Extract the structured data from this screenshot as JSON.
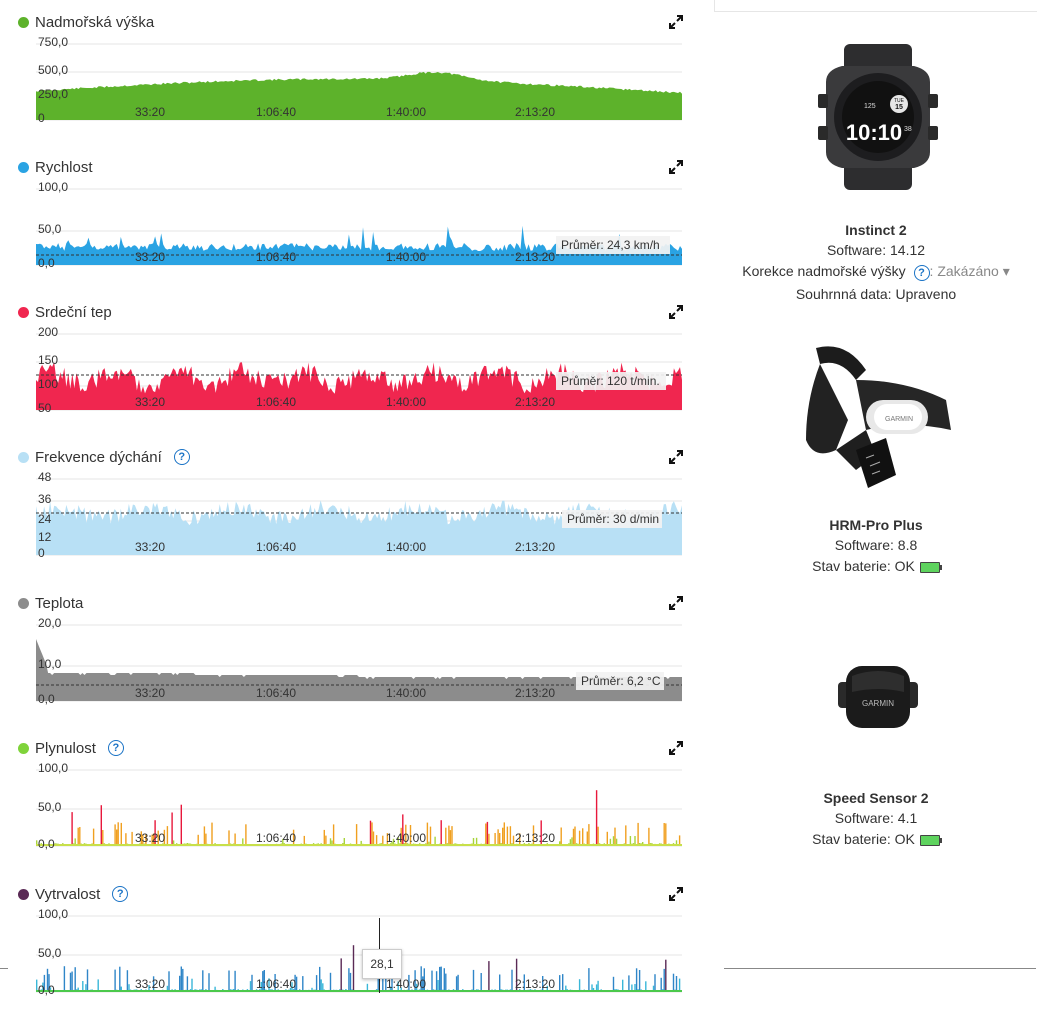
{
  "time_ticks": [
    "33:20",
    "1:06:40",
    "1:40:00",
    "2:13:20"
  ],
  "panels": [
    {
      "id": "elevation",
      "title": "Nadmořská výška",
      "color": "#5db22b",
      "help": false,
      "yticks": [
        "750,0",
        "500,0",
        "250,0",
        "0"
      ],
      "avg": null
    },
    {
      "id": "speed",
      "title": "Rychlost",
      "color": "#2aa3e3",
      "help": false,
      "yticks": [
        "100,0",
        "50,0",
        "0,0"
      ],
      "avg": "Průměr: 24,3 km/h"
    },
    {
      "id": "heart",
      "title": "Srdeční tep",
      "color": "#f0264f",
      "help": false,
      "yticks": [
        "200",
        "150",
        "100",
        "50"
      ],
      "avg": "Průměr: 120 t/min."
    },
    {
      "id": "resp",
      "title": "Frekvence dýchání",
      "color": "#b8e0f5",
      "help": true,
      "yticks": [
        "48",
        "36",
        "24",
        "12",
        "0"
      ],
      "avg": "Průměr: 30 d/min"
    },
    {
      "id": "temp",
      "title": "Teplota",
      "color": "#8c8c8c",
      "help": false,
      "yticks": [
        "20,0",
        "10,0",
        "0,0"
      ],
      "avg": "Průměr: 6,2 °C"
    },
    {
      "id": "flow",
      "title": "Plynulost",
      "color": "#7fd33a",
      "help": true,
      "yticks": [
        "100,0",
        "50,0",
        "0,0"
      ],
      "avg": null
    },
    {
      "id": "grit",
      "title": "Vytrvalost",
      "color": "#5a2a55",
      "help": true,
      "yticks": [
        "100,0",
        "50,0",
        "0,0"
      ],
      "avg": null
    }
  ],
  "tooltip": "28,1",
  "devices": [
    {
      "name": "Instinct 2",
      "software": "Software: 14.12",
      "correction_label": "Korekce nadmořské výšky",
      "correction_value": "Zakázáno",
      "summary": "Souhrnná data: Upraveno"
    },
    {
      "name": "HRM-Pro Plus",
      "software": "Software: 8.8",
      "battery": "Stav baterie: OK"
    },
    {
      "name": "Speed Sensor 2",
      "software": "Software: 4.1",
      "battery": "Stav baterie: OK"
    }
  ],
  "watch_display": {
    "day": "TUE",
    "date": "15",
    "time": "10:10",
    "seconds": "38",
    "hr": "125"
  },
  "brand": "GARMIN"
}
